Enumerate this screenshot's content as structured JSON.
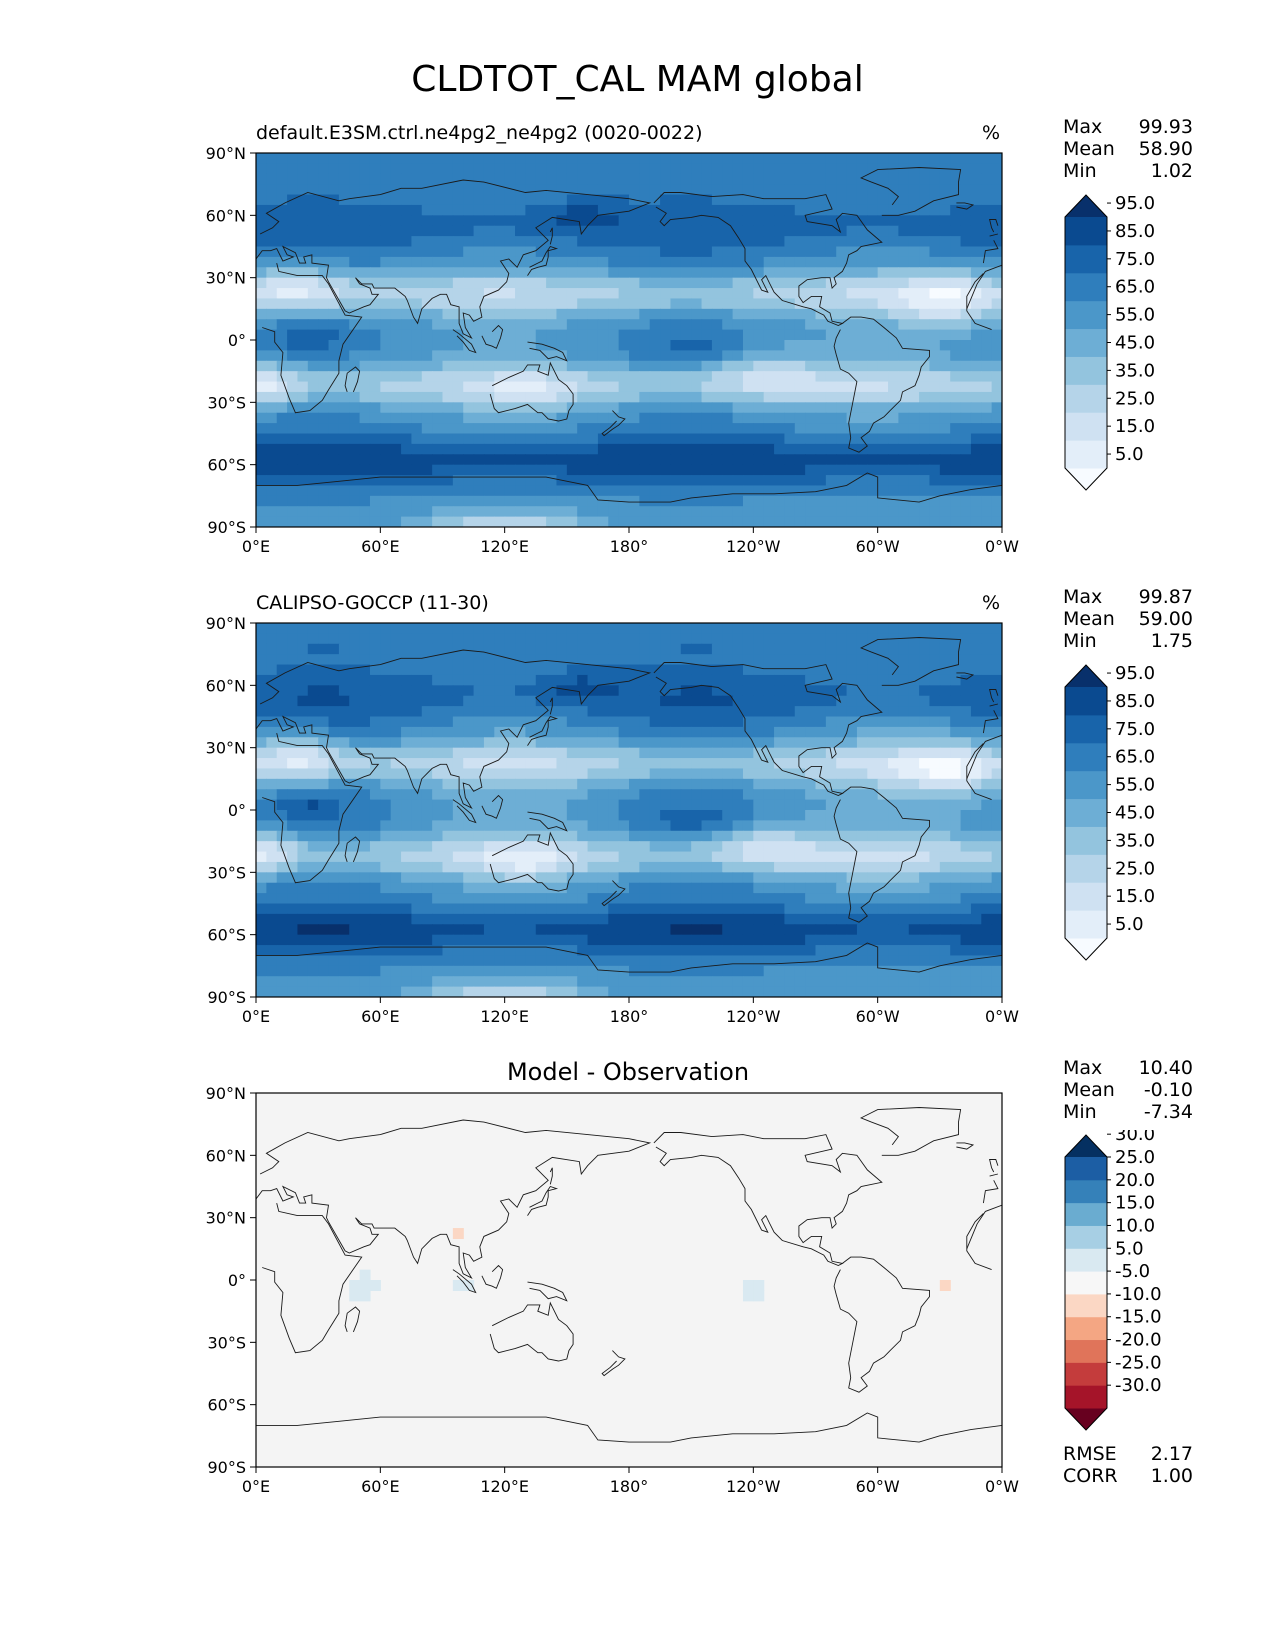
{
  "title": "CLDTOT_CAL MAM global",
  "panels": [
    {
      "title": "default.E3SM.ctrl.ne4pg2_ne4pg2 (0020-0022)",
      "units": "%",
      "stats": [
        {
          "label": "Max",
          "value": "99.93"
        },
        {
          "label": "Mean",
          "value": "58.90"
        },
        {
          "label": "Min",
          "value": "1.02"
        }
      ],
      "colorbar": {
        "colors": [
          "#f7fbff",
          "#e3eef9",
          "#cfe1f2",
          "#b5d4e9",
          "#93c4de",
          "#6daed5",
          "#4b97c9",
          "#2f7ebc",
          "#1864aa",
          "#0a4a90",
          "#08306b"
        ],
        "labels": [
          "5.0",
          "15.0",
          "25.0",
          "35.0",
          "45.0",
          "55.0",
          "65.0",
          "75.0",
          "85.0",
          "95.0"
        ]
      }
    },
    {
      "title": "CALIPSO-GOCCP (11-30)",
      "units": "%",
      "stats": [
        {
          "label": "Max",
          "value": "99.87"
        },
        {
          "label": "Mean",
          "value": "59.00"
        },
        {
          "label": "Min",
          "value": "1.75"
        }
      ],
      "colorbar": {
        "colors": [
          "#f7fbff",
          "#e3eef9",
          "#cfe1f2",
          "#b5d4e9",
          "#93c4de",
          "#6daed5",
          "#4b97c9",
          "#2f7ebc",
          "#1864aa",
          "#0a4a90",
          "#08306b"
        ],
        "labels": [
          "5.0",
          "15.0",
          "25.0",
          "35.0",
          "45.0",
          "55.0",
          "65.0",
          "75.0",
          "85.0",
          "95.0"
        ]
      }
    },
    {
      "title": "",
      "center_title": "Model - Observation",
      "units": "",
      "stats": [
        {
          "label": "Max",
          "value": "10.40"
        },
        {
          "label": "Mean",
          "value": "-0.10"
        },
        {
          "label": "Min",
          "value": "-7.34"
        }
      ],
      "extra_stats": [
        {
          "label": "RMSE",
          "value": "2.17"
        },
        {
          "label": "CORR",
          "value": "1.00"
        }
      ],
      "colorbar": {
        "colors": [
          "#67001f",
          "#a51429",
          "#c43c3c",
          "#e0745a",
          "#f4a683",
          "#fbd7c4",
          "#f7f7f7",
          "#d9e9f1",
          "#a7cfe4",
          "#6aacd0",
          "#3581b9",
          "#1c5ea4",
          "#053061"
        ],
        "labels": [
          "-30.0",
          "-25.0",
          "-20.0",
          "-15.0",
          "-10.0",
          "-5.0",
          "5.0",
          "10.0",
          "15.0",
          "20.0",
          "25.0",
          "30.0"
        ]
      }
    }
  ],
  "axes": {
    "xticks": [
      "0°E",
      "60°E",
      "120°E",
      "180°",
      "120°W",
      "60°W",
      "0°W"
    ],
    "yticks": [
      "90°N",
      "60°N",
      "30°N",
      "0°",
      "30°S",
      "60°S",
      "90°S"
    ]
  },
  "map_colors": {
    "diff_background": "#f4f4f4",
    "coast": "#1a1a1a"
  }
}
